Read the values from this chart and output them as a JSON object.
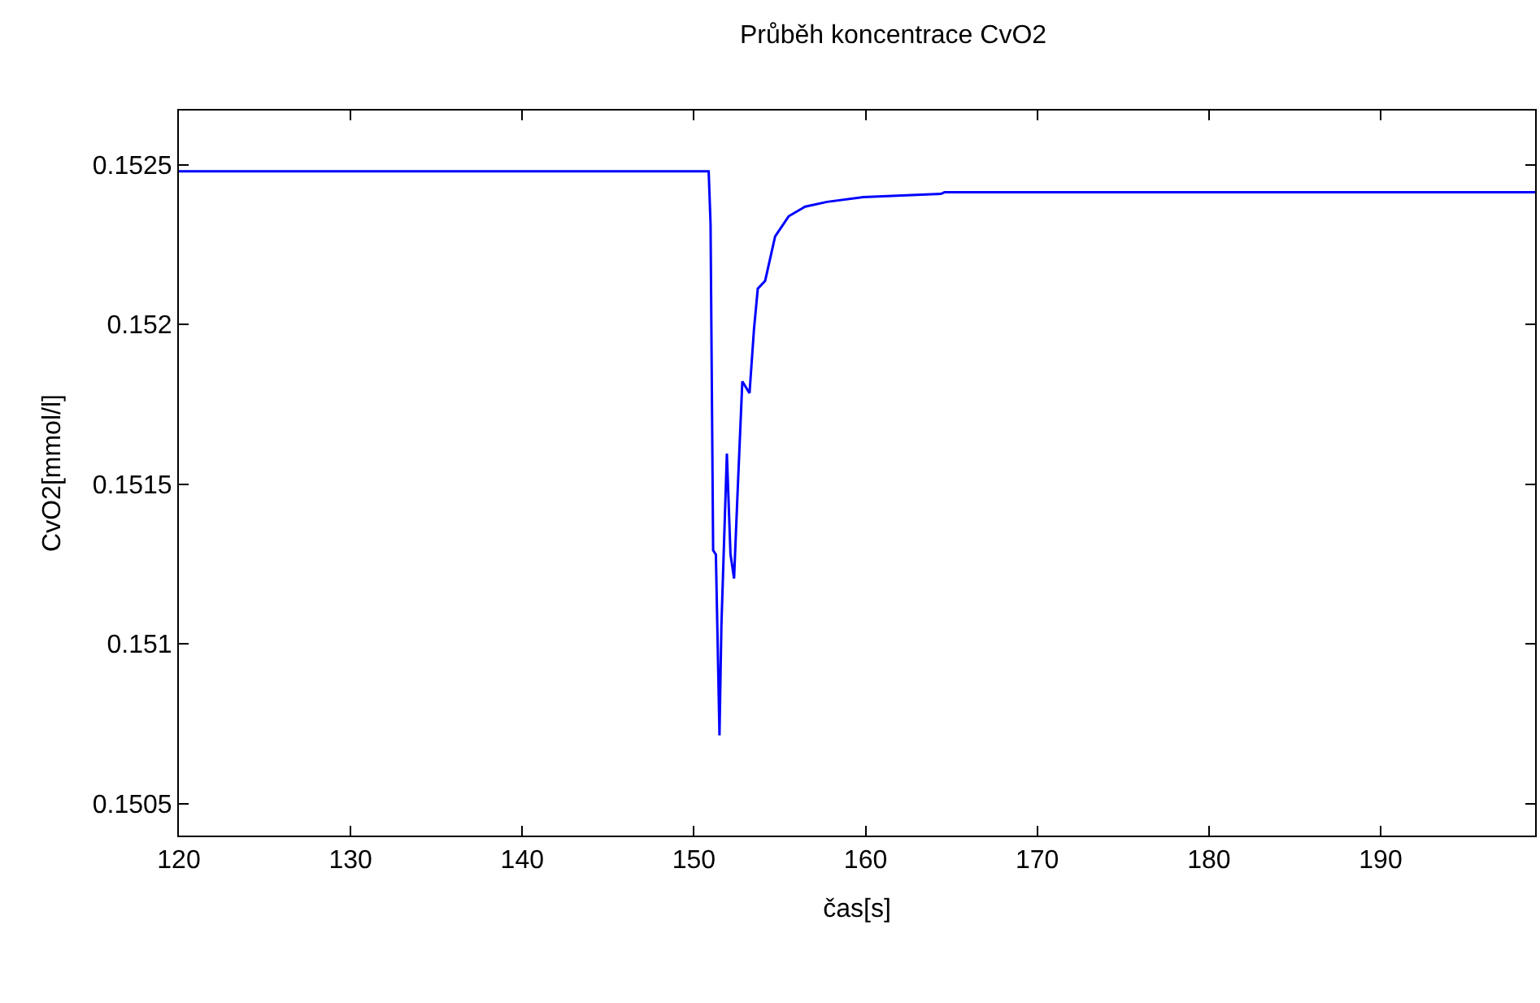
{
  "chart_data": {
    "type": "line",
    "title": "Průběh koncentrace CvO2",
    "xlabel": "čas[s]",
    "ylabel": "CvO2[mmol/l]",
    "x": [
      120,
      150.86,
      150.97,
      151.12,
      151.28,
      151.49,
      151.6,
      151.92,
      152.13,
      152.34,
      152.55,
      152.82,
      153.24,
      153.5,
      153.72,
      154.15,
      154.73,
      155.52,
      156.48,
      157.75,
      159.87,
      164.38,
      164.6,
      199
    ],
    "series": [
      {
        "color": "#0000ff",
        "values": [
          0.15248,
          0.15248,
          0.152314,
          0.151293,
          0.15128,
          0.150714,
          0.151054,
          0.151596,
          0.151281,
          0.151205,
          0.151482,
          0.151822,
          0.151785,
          0.151986,
          0.152112,
          0.152137,
          0.152276,
          0.152339,
          0.152369,
          0.152384,
          0.152399,
          0.152409,
          0.152414,
          0.152414
        ]
      }
    ],
    "xlim": [
      120,
      199
    ],
    "xticks": [
      120,
      130,
      140,
      150,
      160,
      170,
      180,
      190
    ],
    "ylim": [
      0.1504,
      0.15267
    ],
    "yticks": [
      0.1505,
      0.151,
      0.1515,
      0.152,
      0.1525
    ],
    "legend": false,
    "marker": "none",
    "line_style": "solid"
  }
}
